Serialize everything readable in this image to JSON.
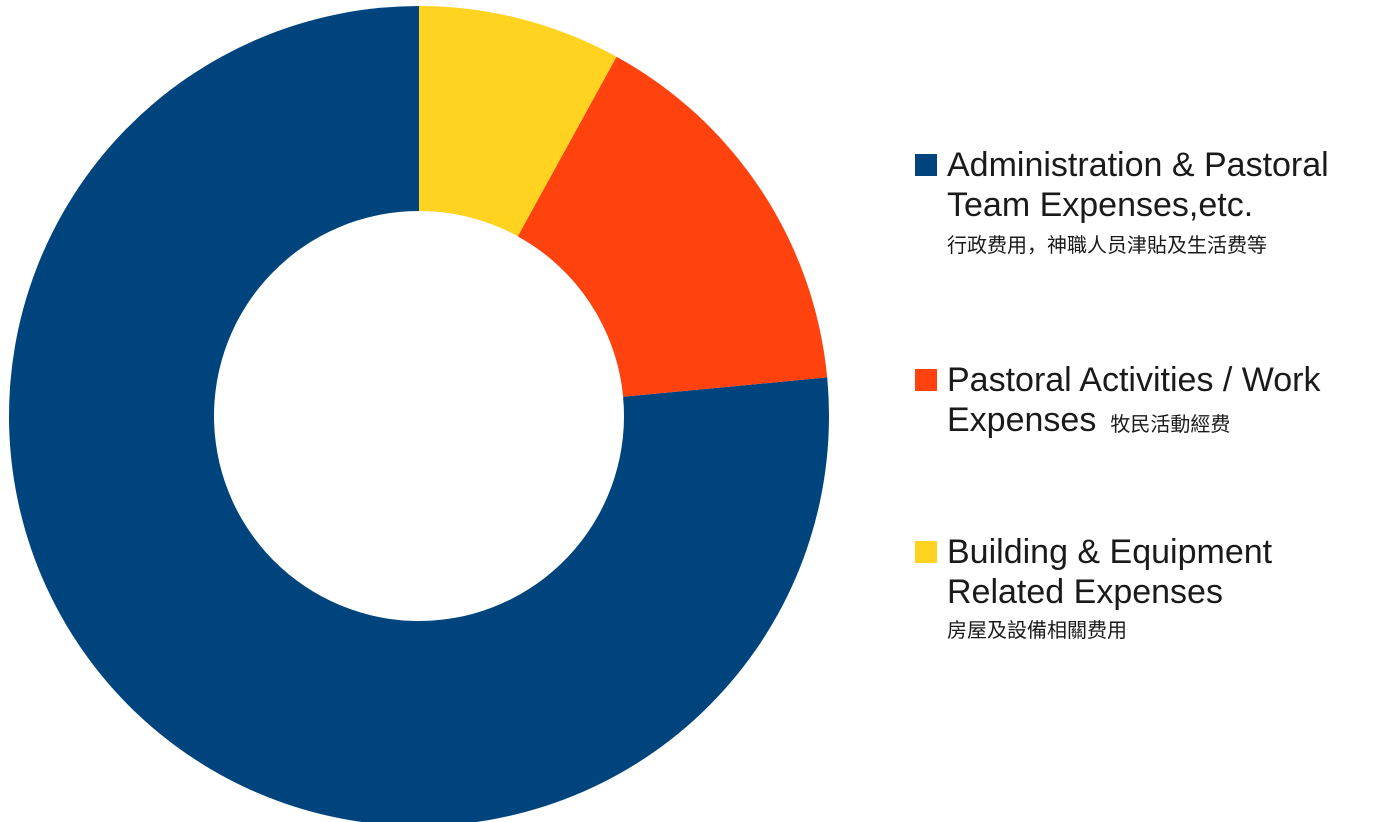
{
  "chart_data": {
    "type": "pie",
    "donut": true,
    "title": "",
    "series": [
      {
        "label_en": "Administration & Pastoral\nTeam Expenses,etc.",
        "label_zh": "行政费用，神職人员津貼及生活费等",
        "value": 76.5,
        "color": "#00447e"
      },
      {
        "label_en": "Pastoral Activities / Work\nExpenses",
        "label_zh": "牧民活動經费",
        "value": 15.5,
        "color": "#ff420e"
      },
      {
        "label_en": "Building & Equipment\nRelated Expenses",
        "label_zh": "房屋及設備相關费用",
        "value": 8.0,
        "color": "#ffd320"
      }
    ],
    "legend_position": "right",
    "start_angle": "top",
    "direction": "counterclockwise"
  }
}
